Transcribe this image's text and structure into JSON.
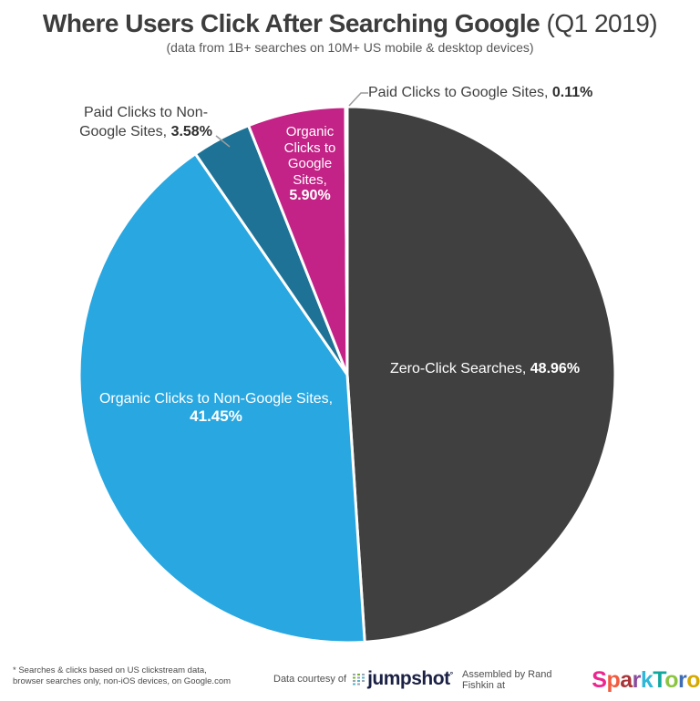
{
  "header": {
    "title": "Where Users Click After Searching Google",
    "title_suffix": " (Q1 2019)",
    "subtitle": "(data from 1B+ searches on 10M+ US mobile & desktop devices)"
  },
  "chart_data": {
    "type": "pie",
    "title": "Where Users Click After Searching Google (Q1 2019)",
    "subtitle": "(data from 1B+ searches on 10M+ US mobile & desktop devices)",
    "unit": "%",
    "direction": "clockwise",
    "start_angle": "12 o'clock",
    "slices": [
      {
        "name": "Zero-Click Searches",
        "value": 48.96,
        "color": "#404040"
      },
      {
        "name": "Organic Clicks to Non-Google Sites",
        "value": 41.45,
        "color": "#29a7e0"
      },
      {
        "name": "Paid Clicks to Non-Google Sites",
        "value": 3.58,
        "color": "#1d7296"
      },
      {
        "name": "Organic Clicks to Google Sites",
        "value": 5.9,
        "color": "#c32286"
      },
      {
        "name": "Paid Clicks to Google Sites",
        "value": 0.11,
        "color": "#f2f2f2"
      }
    ]
  },
  "labels": {
    "paid_google": {
      "text": "Paid Clicks to Google Sites, ",
      "pct": "0.11%"
    },
    "paid_non_google": {
      "line1": "Paid Clicks to Non-",
      "line2": "Google Sites, ",
      "pct": "3.58%"
    },
    "organic_google": {
      "text": "Organic Clicks to Google Sites,",
      "pct": "5.90%"
    },
    "organic_non_google": {
      "text": "Organic Clicks to Non-Google Sites,",
      "pct": "41.45%"
    },
    "zero_click": {
      "text": "Zero-Click Searches, ",
      "pct": "48.96%"
    }
  },
  "footer": {
    "note_line1": "* Searches & clicks based on US clickstream data,",
    "note_line2": "browser searches only, non-iOS devices, on Google.com",
    "courtesy_text": "Data courtesy of",
    "jumpshot_wordmark": "jumpshot",
    "jumpshot_mark": "°",
    "assembled_text": "Assembled by Rand Fishkin at",
    "sparktoro_letters": [
      {
        "ch": "S",
        "color": "#ec268f"
      },
      {
        "ch": "p",
        "color": "#f15b40"
      },
      {
        "ch": "a",
        "color": "#a93439"
      },
      {
        "ch": "r",
        "color": "#8a4b9d"
      },
      {
        "ch": "k",
        "color": "#31b7d8"
      },
      {
        "ch": "T",
        "color": "#12a89d"
      },
      {
        "ch": "o",
        "color": "#8bc53f"
      },
      {
        "ch": "r",
        "color": "#3f6db5"
      },
      {
        "ch": "o",
        "color": "#d4a900"
      }
    ]
  }
}
